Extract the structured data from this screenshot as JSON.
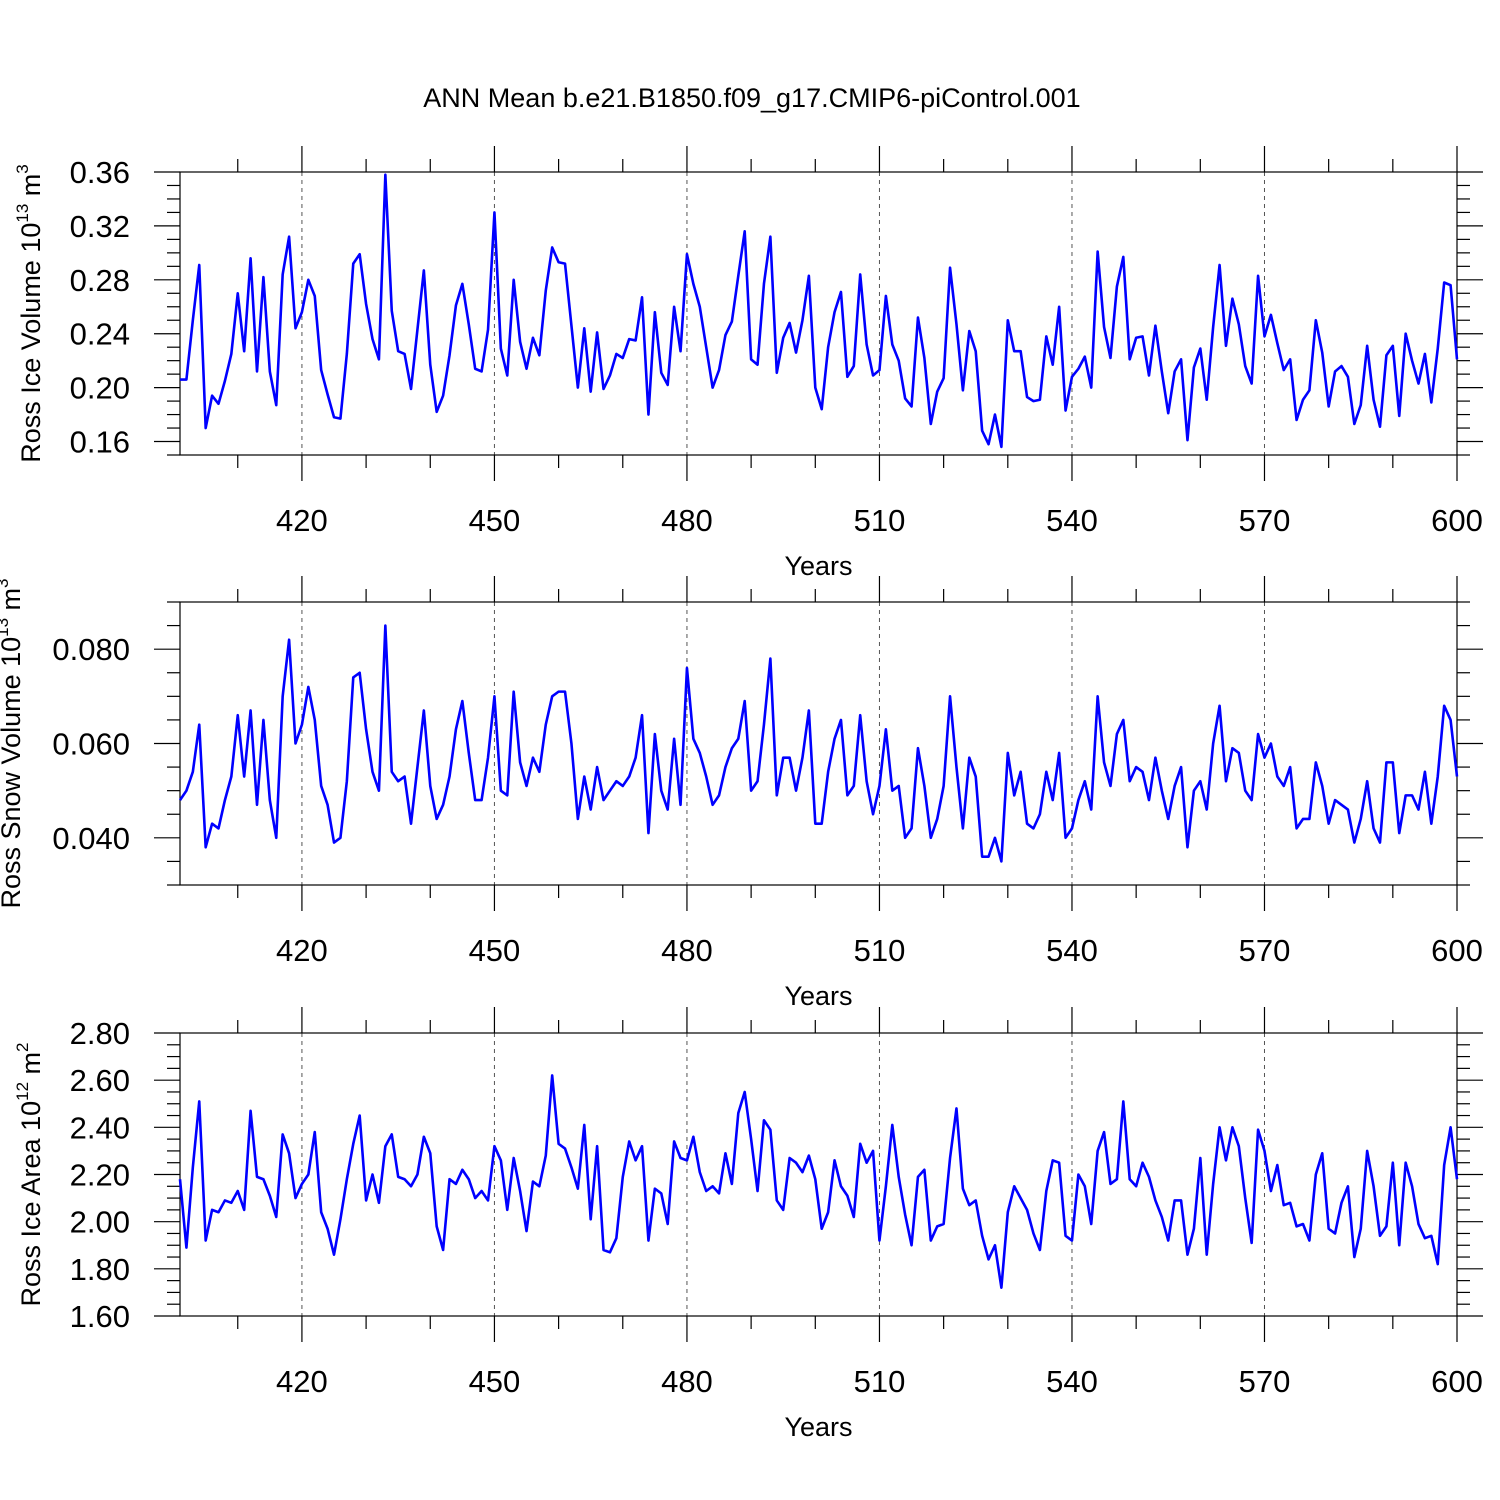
{
  "title": "ANN Mean b.e21.B1850.f09_g17.CMIP6-piControl.001",
  "colors": {
    "series": "#0000ff",
    "grid": "#555555",
    "axis": "#000000"
  },
  "chart_data": [
    {
      "type": "line",
      "ylabel_main": "Ross Ice Volume 10",
      "ylabel_exp": "13",
      "ylabel_unit": " m",
      "ylabel_unit_exp": "3",
      "xlabel": "Years",
      "xlim": [
        401,
        600
      ],
      "ylim": [
        0.15,
        0.36
      ],
      "yticks": [
        0.16,
        0.2,
        0.24,
        0.28,
        0.32,
        0.36
      ],
      "ytick_labels": [
        "0.16",
        "0.20",
        "0.24",
        "0.28",
        "0.32",
        "0.36"
      ],
      "xticks": [
        420,
        450,
        480,
        510,
        540,
        570,
        600
      ],
      "xtick_labels": [
        "420",
        "450",
        "480",
        "510",
        "540",
        "570",
        "600"
      ],
      "grid_x": [
        420,
        450,
        480,
        510,
        540,
        570
      ],
      "x_start": 401,
      "values": [
        0.206,
        0.206,
        0.25,
        0.291,
        0.17,
        0.194,
        0.188,
        0.205,
        0.225,
        0.27,
        0.227,
        0.296,
        0.212,
        0.282,
        0.212,
        0.187,
        0.284,
        0.312,
        0.244,
        0.256,
        0.28,
        0.268,
        0.213,
        0.195,
        0.178,
        0.177,
        0.225,
        0.292,
        0.299,
        0.262,
        0.236,
        0.221,
        0.358,
        0.257,
        0.227,
        0.225,
        0.199,
        0.243,
        0.287,
        0.217,
        0.182,
        0.194,
        0.224,
        0.261,
        0.277,
        0.247,
        0.214,
        0.212,
        0.243,
        0.33,
        0.229,
        0.209,
        0.28,
        0.234,
        0.214,
        0.237,
        0.224,
        0.272,
        0.304,
        0.293,
        0.292,
        0.246,
        0.2,
        0.244,
        0.197,
        0.241,
        0.199,
        0.209,
        0.225,
        0.222,
        0.236,
        0.235,
        0.267,
        0.18,
        0.256,
        0.211,
        0.202,
        0.26,
        0.227,
        0.299,
        0.277,
        0.26,
        0.23,
        0.2,
        0.213,
        0.239,
        0.249,
        0.283,
        0.316,
        0.221,
        0.217,
        0.277,
        0.312,
        0.211,
        0.237,
        0.248,
        0.226,
        0.25,
        0.283,
        0.2,
        0.184,
        0.23,
        0.256,
        0.271,
        0.208,
        0.216,
        0.284,
        0.232,
        0.209,
        0.213,
        0.268,
        0.232,
        0.22,
        0.192,
        0.186,
        0.252,
        0.222,
        0.173,
        0.197,
        0.207,
        0.289,
        0.247,
        0.198,
        0.242,
        0.227,
        0.168,
        0.158,
        0.18,
        0.156,
        0.25,
        0.227,
        0.227,
        0.193,
        0.19,
        0.191,
        0.238,
        0.217,
        0.26,
        0.183,
        0.208,
        0.214,
        0.223,
        0.2,
        0.301,
        0.245,
        0.222,
        0.275,
        0.297,
        0.221,
        0.237,
        0.238,
        0.209,
        0.246,
        0.212,
        0.181,
        0.212,
        0.221,
        0.161,
        0.215,
        0.229,
        0.191,
        0.245,
        0.291,
        0.231,
        0.266,
        0.247,
        0.216,
        0.203,
        0.283,
        0.238,
        0.254,
        0.233,
        0.213,
        0.221,
        0.176,
        0.191,
        0.198,
        0.25,
        0.226,
        0.186,
        0.212,
        0.216,
        0.208,
        0.173,
        0.187,
        0.231,
        0.191,
        0.171,
        0.224,
        0.231,
        0.179,
        0.24,
        0.22,
        0.203,
        0.225,
        0.189,
        0.229,
        0.278,
        0.276,
        0.221
      ]
    },
    {
      "type": "line",
      "ylabel_main": "Ross Snow Volume 10",
      "ylabel_exp": "13",
      "ylabel_unit": " m",
      "ylabel_unit_exp": "3",
      "xlabel": "Years",
      "xlim": [
        401,
        600
      ],
      "ylim": [
        0.03,
        0.09
      ],
      "yticks": [
        0.04,
        0.06,
        0.08
      ],
      "ytick_labels": [
        "0.040",
        "0.060",
        "0.080"
      ],
      "xticks": [
        420,
        450,
        480,
        510,
        540,
        570,
        600
      ],
      "xtick_labels": [
        "420",
        "450",
        "480",
        "510",
        "540",
        "570",
        "600"
      ],
      "grid_x": [
        420,
        450,
        480,
        510,
        540,
        570
      ],
      "x_start": 401,
      "values": [
        0.048,
        0.05,
        0.054,
        0.064,
        0.038,
        0.043,
        0.042,
        0.048,
        0.053,
        0.066,
        0.053,
        0.067,
        0.047,
        0.065,
        0.048,
        0.04,
        0.07,
        0.082,
        0.06,
        0.064,
        0.072,
        0.065,
        0.051,
        0.047,
        0.039,
        0.04,
        0.052,
        0.074,
        0.075,
        0.063,
        0.054,
        0.05,
        0.085,
        0.054,
        0.052,
        0.053,
        0.043,
        0.055,
        0.067,
        0.051,
        0.044,
        0.047,
        0.053,
        0.063,
        0.069,
        0.058,
        0.048,
        0.048,
        0.057,
        0.07,
        0.05,
        0.049,
        0.071,
        0.056,
        0.051,
        0.057,
        0.054,
        0.064,
        0.07,
        0.071,
        0.071,
        0.06,
        0.044,
        0.053,
        0.046,
        0.055,
        0.048,
        0.05,
        0.052,
        0.051,
        0.053,
        0.057,
        0.066,
        0.041,
        0.062,
        0.05,
        0.046,
        0.061,
        0.047,
        0.076,
        0.061,
        0.058,
        0.053,
        0.047,
        0.049,
        0.055,
        0.059,
        0.061,
        0.069,
        0.05,
        0.052,
        0.064,
        0.078,
        0.049,
        0.057,
        0.057,
        0.05,
        0.057,
        0.067,
        0.043,
        0.043,
        0.054,
        0.061,
        0.065,
        0.049,
        0.051,
        0.066,
        0.052,
        0.045,
        0.051,
        0.063,
        0.05,
        0.051,
        0.04,
        0.042,
        0.059,
        0.051,
        0.04,
        0.044,
        0.051,
        0.07,
        0.055,
        0.042,
        0.057,
        0.053,
        0.036,
        0.036,
        0.04,
        0.035,
        0.058,
        0.049,
        0.054,
        0.043,
        0.042,
        0.045,
        0.054,
        0.048,
        0.058,
        0.04,
        0.042,
        0.048,
        0.052,
        0.046,
        0.07,
        0.056,
        0.051,
        0.062,
        0.065,
        0.052,
        0.055,
        0.054,
        0.048,
        0.057,
        0.05,
        0.044,
        0.051,
        0.055,
        0.038,
        0.05,
        0.052,
        0.046,
        0.06,
        0.068,
        0.052,
        0.059,
        0.058,
        0.05,
        0.048,
        0.062,
        0.057,
        0.06,
        0.053,
        0.051,
        0.055,
        0.042,
        0.044,
        0.044,
        0.056,
        0.051,
        0.043,
        0.048,
        0.047,
        0.046,
        0.039,
        0.044,
        0.052,
        0.042,
        0.039,
        0.056,
        0.056,
        0.041,
        0.049,
        0.049,
        0.046,
        0.054,
        0.043,
        0.053,
        0.068,
        0.065,
        0.053
      ]
    },
    {
      "type": "line",
      "ylabel_main": "Ross Ice Area 10",
      "ylabel_exp": "12",
      "ylabel_unit": " m",
      "ylabel_unit_exp": "2",
      "xlabel": "Years",
      "xlim": [
        401,
        600
      ],
      "ylim": [
        1.6,
        2.8
      ],
      "yticks": [
        1.6,
        1.8,
        2.0,
        2.2,
        2.4,
        2.6,
        2.8
      ],
      "ytick_labels": [
        "1.60",
        "1.80",
        "2.00",
        "2.20",
        "2.40",
        "2.60",
        "2.80"
      ],
      "xticks": [
        420,
        450,
        480,
        510,
        540,
        570,
        600
      ],
      "xtick_labels": [
        "420",
        "450",
        "480",
        "510",
        "540",
        "570",
        "600"
      ],
      "grid_x": [
        420,
        450,
        480,
        510,
        540,
        570
      ],
      "x_start": 401,
      "values": [
        2.18,
        1.89,
        2.23,
        2.51,
        1.92,
        2.05,
        2.04,
        2.09,
        2.08,
        2.13,
        2.05,
        2.47,
        2.19,
        2.18,
        2.11,
        2.02,
        2.37,
        2.29,
        2.1,
        2.16,
        2.2,
        2.38,
        2.04,
        1.97,
        1.86,
        2.01,
        2.18,
        2.33,
        2.45,
        2.09,
        2.2,
        2.08,
        2.32,
        2.37,
        2.19,
        2.18,
        2.15,
        2.2,
        2.36,
        2.29,
        1.98,
        1.88,
        2.18,
        2.16,
        2.22,
        2.18,
        2.1,
        2.13,
        2.09,
        2.32,
        2.26,
        2.05,
        2.27,
        2.13,
        1.96,
        2.17,
        2.15,
        2.28,
        2.62,
        2.33,
        2.31,
        2.23,
        2.14,
        2.41,
        2.01,
        2.32,
        1.88,
        1.87,
        1.93,
        2.19,
        2.34,
        2.26,
        2.32,
        1.92,
        2.14,
        2.12,
        1.99,
        2.34,
        2.27,
        2.26,
        2.36,
        2.21,
        2.13,
        2.15,
        2.12,
        2.29,
        2.16,
        2.46,
        2.55,
        2.35,
        2.13,
        2.43,
        2.39,
        2.09,
        2.05,
        2.27,
        2.25,
        2.21,
        2.28,
        2.18,
        1.97,
        2.04,
        2.26,
        2.15,
        2.11,
        2.02,
        2.33,
        2.25,
        2.3,
        1.92,
        2.15,
        2.41,
        2.19,
        2.03,
        1.9,
        2.19,
        2.22,
        1.92,
        1.98,
        1.99,
        2.27,
        2.48,
        2.14,
        2.07,
        2.09,
        1.94,
        1.84,
        1.9,
        1.72,
        2.04,
        2.15,
        2.1,
        2.05,
        1.95,
        1.88,
        2.13,
        2.26,
        2.25,
        1.94,
        1.92,
        2.2,
        2.15,
        1.99,
        2.3,
        2.38,
        2.16,
        2.18,
        2.51,
        2.18,
        2.15,
        2.25,
        2.19,
        2.09,
        2.02,
        1.92,
        2.09,
        2.09,
        1.86,
        1.97,
        2.27,
        1.86,
        2.16,
        2.4,
        2.26,
        2.4,
        2.32,
        2.1,
        1.91,
        2.39,
        2.3,
        2.13,
        2.24,
        2.07,
        2.08,
        1.98,
        1.99,
        1.92,
        2.2,
        2.29,
        1.97,
        1.95,
        2.08,
        2.15,
        1.85,
        1.97,
        2.3,
        2.15,
        1.94,
        1.98,
        2.25,
        1.9,
        2.25,
        2.15,
        1.99,
        1.93,
        1.94,
        1.82,
        2.24,
        2.4,
        2.18
      ]
    }
  ]
}
